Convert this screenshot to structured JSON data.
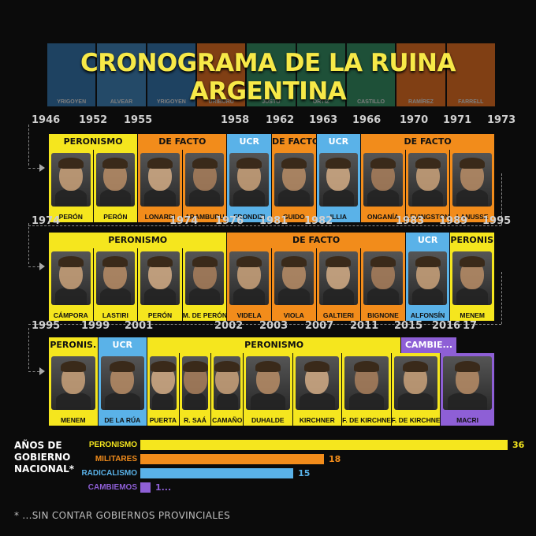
{
  "title": "CRONOGRAMA DE LA RUINA ARGENTINA",
  "top_strip": [
    {
      "name": "YRIGOYEN",
      "color": "#2e6fa8"
    },
    {
      "name": "ALVEAR",
      "color": "#3a7fb5"
    },
    {
      "name": "YRIGOYEN",
      "color": "#2e6fa8"
    },
    {
      "name": "URIBURU",
      "color": "#e06a1c"
    },
    {
      "name": "JUSTO",
      "color": "#2f8a5e"
    },
    {
      "name": "ORTIZ",
      "color": "#2f8a5e"
    },
    {
      "name": "CASTILLO",
      "color": "#2f8a5e"
    },
    {
      "name": "RAMÍREZ",
      "color": "#e06a1c"
    },
    {
      "name": "FARRELL",
      "color": "#e06a1c"
    }
  ],
  "colors": {
    "peronismo": "#f5e61e",
    "militares": "#f28c1b",
    "radicalismo": "#5ab2e8",
    "cambiemos": "#8e5fd6"
  },
  "rows": [
    {
      "years": [
        [
          "1946",
          40
        ],
        [
          "1952",
          100
        ],
        [
          "1955",
          157
        ],
        [
          "1958",
          280
        ],
        [
          "1962",
          337
        ],
        [
          "1963",
          392
        ],
        [
          "1966",
          447
        ],
        [
          "1970",
          507
        ],
        [
          "1971",
          562
        ],
        [
          "1973",
          618
        ]
      ],
      "segments": [
        {
          "label": "PERONISMO",
          "party": "peronismo",
          "start": 0,
          "span": 2
        },
        {
          "label": "DE FACTO",
          "party": "militares",
          "start": 2,
          "span": 2
        },
        {
          "label": "UCR",
          "party": "radicalismo",
          "start": 4,
          "span": 1
        },
        {
          "label": "DE FACTO",
          "party": "militares",
          "start": 5,
          "span": 1
        },
        {
          "label": "UCR",
          "party": "radicalismo",
          "start": 6,
          "span": 1
        },
        {
          "label": "DE FACTO",
          "party": "militares",
          "start": 7,
          "span": 3
        }
      ],
      "presidents": [
        {
          "name": "PERÓN",
          "party": "peronismo"
        },
        {
          "name": "PERÓN",
          "party": "peronismo"
        },
        {
          "name": "LONARDI",
          "party": "militares"
        },
        {
          "name": "ARAMBURU",
          "party": "militares"
        },
        {
          "name": "FRONDIZI",
          "party": "radicalismo"
        },
        {
          "name": "GUIDO",
          "party": "militares"
        },
        {
          "name": "ILLIA",
          "party": "radicalismo"
        },
        {
          "name": "ONGANÍA",
          "party": "militares"
        },
        {
          "name": "LEVINGSTON",
          "party": "militares"
        },
        {
          "name": "LANUSSE",
          "party": "militares"
        }
      ]
    },
    {
      "years": [
        [
          "1974",
          40
        ],
        [
          "1974",
          215
        ],
        [
          "1976",
          273
        ],
        [
          "1981",
          329
        ],
        [
          "1982",
          386
        ],
        [
          "1983",
          502
        ],
        [
          "1989",
          557
        ],
        [
          "1995",
          612
        ]
      ],
      "segments": [
        {
          "label": "PERONISMO",
          "party": "peronismo",
          "start": 0,
          "span": 4
        },
        {
          "label": "DE FACTO",
          "party": "militares",
          "start": 4,
          "span": 4
        },
        {
          "label": "UCR",
          "party": "radicalismo",
          "start": 8,
          "span": 1
        },
        {
          "label": "PERONIS.",
          "party": "peronismo",
          "start": 9,
          "span": 1
        }
      ],
      "presidents": [
        {
          "name": "CÁMPORA",
          "party": "peronismo"
        },
        {
          "name": "LASTIRI",
          "party": "peronismo"
        },
        {
          "name": "PERÓN",
          "party": "peronismo"
        },
        {
          "name": "M. DE PERÓN",
          "party": "peronismo"
        },
        {
          "name": "VIDELA",
          "party": "militares"
        },
        {
          "name": "VIOLA",
          "party": "militares"
        },
        {
          "name": "GALTIERI",
          "party": "militares"
        },
        {
          "name": "BIGNONE",
          "party": "militares"
        },
        {
          "name": "ALFONSÍN",
          "party": "radicalismo"
        },
        {
          "name": "MENEM",
          "party": "peronismo"
        }
      ]
    },
    {
      "years": [
        [
          "1995",
          40
        ],
        [
          "1999",
          103
        ],
        [
          "2001",
          158
        ],
        [
          "2002",
          272
        ],
        [
          "2003",
          329
        ],
        [
          "2007",
          387
        ],
        [
          "2011",
          444
        ],
        [
          "2015",
          500
        ],
        [
          "2016",
          548
        ],
        [
          "17",
          587
        ]
      ],
      "segments": [
        {
          "label": "PERONIS.",
          "party": "peronismo",
          "start": 0,
          "span": 1
        },
        {
          "label": "UCR",
          "party": "radicalismo",
          "start": 1,
          "span": 1
        },
        {
          "label": "PERONISMO",
          "party": "peronismo",
          "start": 2,
          "span": 6.2
        },
        {
          "label": "CAMBIE...",
          "party": "cambiemos",
          "start": 8.2,
          "span": 1.1
        }
      ],
      "presidents": [
        {
          "name": "MENEM",
          "party": "peronismo",
          "w": 1
        },
        {
          "name": "DE LA RÚA",
          "party": "radicalismo",
          "w": 1
        },
        {
          "name": "PUERTA",
          "party": "peronismo",
          "w": 0.65
        },
        {
          "name": "R. SAÁ",
          "party": "peronismo",
          "w": 0.65
        },
        {
          "name": "CAMAÑO",
          "party": "peronismo",
          "w": 0.65
        },
        {
          "name": "DUHALDE",
          "party": "peronismo",
          "w": 1
        },
        {
          "name": "KIRCHNER",
          "party": "peronismo",
          "w": 1
        },
        {
          "name": "F. DE KIRCHNER",
          "party": "peronismo",
          "w": 1
        },
        {
          "name": "F. DE KIRCHNER",
          "party": "peronismo",
          "w": 1
        },
        {
          "name": "MACRI",
          "party": "cambiemos",
          "w": 1.1
        }
      ]
    }
  ],
  "legend": {
    "title_lines": [
      "AÑOS DE",
      "GOBIERNO",
      "NACIONAL*"
    ],
    "bars": [
      {
        "label": "PERONISMO",
        "value": 36,
        "value_text": "36",
        "party": "peronismo"
      },
      {
        "label": "MILITARES",
        "value": 18,
        "value_text": "18",
        "party": "militares"
      },
      {
        "label": "RADICALISMO",
        "value": 15,
        "value_text": "15",
        "party": "radicalismo"
      },
      {
        "label": "CAMBIEMOS",
        "value": 1,
        "value_text": "1...",
        "party": "cambiemos"
      }
    ],
    "max": 36
  },
  "footnote": "* ...SIN CONTAR GOBIERNOS PROVINCIALES"
}
